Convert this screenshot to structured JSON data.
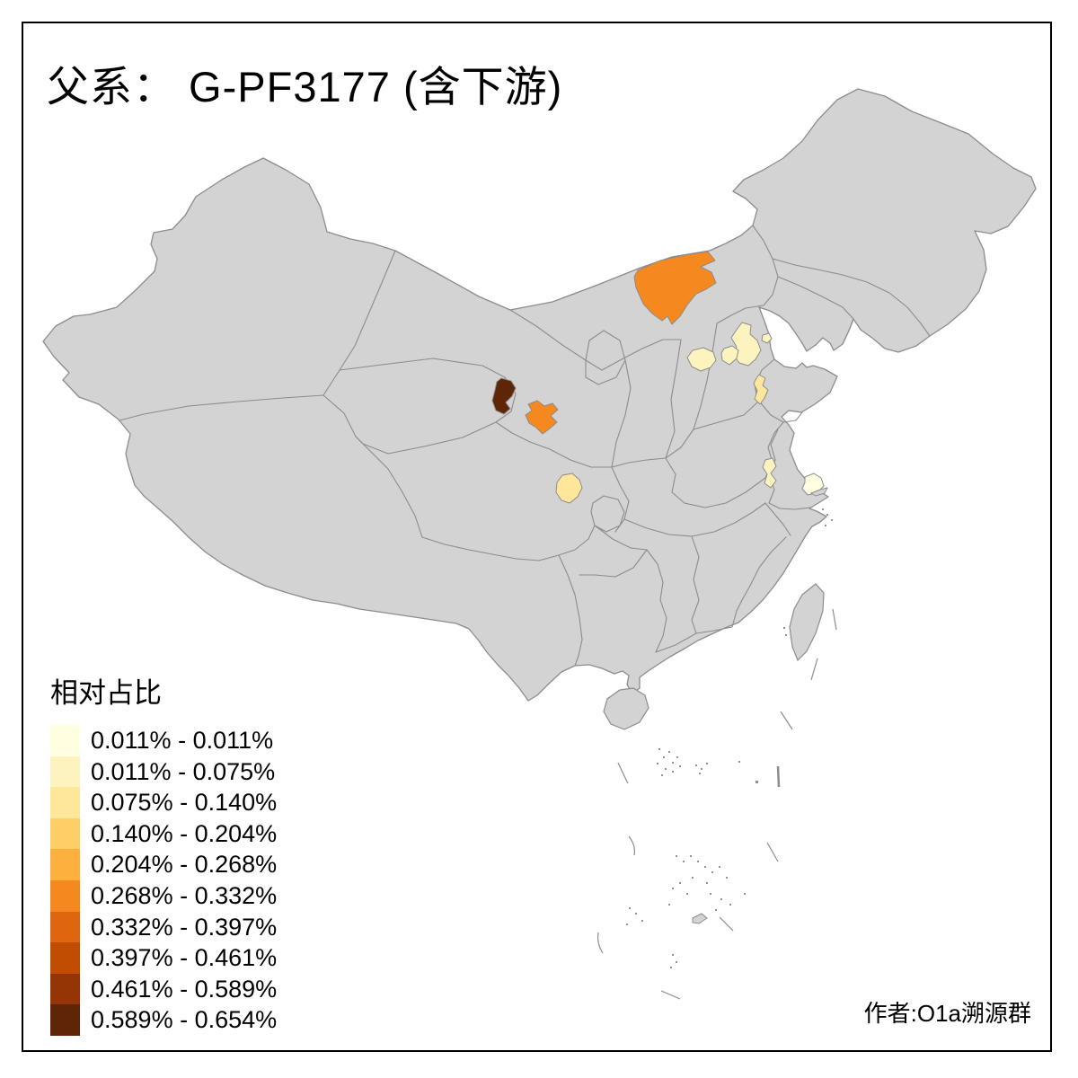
{
  "title": "父系： G-PF3177 (含下游)",
  "legend": {
    "title": "相对占比",
    "classes": [
      {
        "label": "0.011% - 0.011%",
        "color": "#FFFEE0"
      },
      {
        "label": "0.011% - 0.075%",
        "color": "#FDF3BE"
      },
      {
        "label": "0.075% - 0.140%",
        "color": "#FEE69A"
      },
      {
        "label": "0.140% - 0.204%",
        "color": "#FECF66"
      },
      {
        "label": "0.204% - 0.268%",
        "color": "#FDB03D"
      },
      {
        "label": "0.268% - 0.332%",
        "color": "#F5881F"
      },
      {
        "label": "0.332% - 0.397%",
        "color": "#DD660E"
      },
      {
        "label": "0.397% - 0.461%",
        "color": "#C14D03"
      },
      {
        "label": "0.461% - 0.589%",
        "color": "#953405"
      },
      {
        "label": "0.589% - 0.654%",
        "color": "#5F2507"
      }
    ]
  },
  "attribution": "作者:O1a溯源群",
  "map": {
    "land_color": "#D3D3D3",
    "border_color": "#8C8C8C",
    "background_color": "#FFFFFF",
    "frame_color": "#000000",
    "highlighted_regions": [
      {
        "id": "region-inner-mongolia-west",
        "class_index": 5
      },
      {
        "id": "region-qinghai-east",
        "class_index": 9
      },
      {
        "id": "region-gansu-central",
        "class_index": 5
      },
      {
        "id": "region-sichuan-north",
        "class_index": 2
      },
      {
        "id": "region-beijing",
        "class_index": 1
      },
      {
        "id": "region-hebei-west",
        "class_index": 1
      },
      {
        "id": "region-hebei-mid",
        "class_index": 1
      },
      {
        "id": "region-tianjin-east",
        "class_index": 1
      },
      {
        "id": "region-hebei-southeast-strip",
        "class_index": 2
      },
      {
        "id": "region-jiangsu-west",
        "class_index": 1
      },
      {
        "id": "region-jiangsu-coast",
        "class_index": 0
      }
    ]
  }
}
